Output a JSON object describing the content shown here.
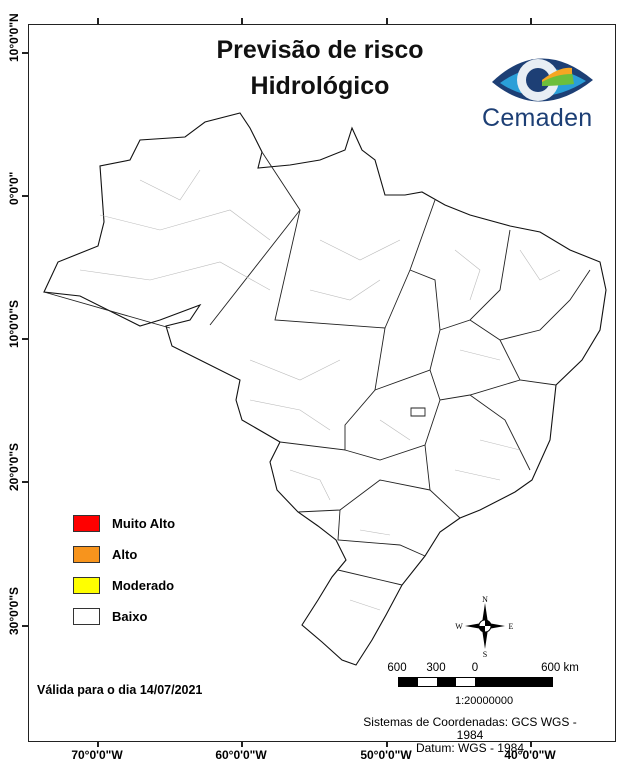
{
  "map": {
    "title_line1": "Previsão de risco",
    "title_line2": "Hidrológico",
    "logo": {
      "text": "Cemaden",
      "colors": [
        "#1d3f75",
        "#2a9fd8",
        "#6cbf3c",
        "#f5a623"
      ]
    },
    "latitude_labels": [
      "10°0'0\"N",
      "0°0'0\"",
      "10°0'0\"S",
      "20°0'0\"S",
      "30°0'0\"S"
    ],
    "longitude_labels": [
      "70°0'0\"W",
      "60°0'0\"W",
      "50°0'0\"W",
      "40°0'0\"W"
    ],
    "legend": [
      {
        "label": "Muito Alto",
        "color": "#ff0000"
      },
      {
        "label": "Alto",
        "color": "#f7941d"
      },
      {
        "label": "Moderado",
        "color": "#ffff00"
      },
      {
        "label": "Baixo",
        "color": "#ffffff"
      }
    ],
    "region_risk_level": "Baixo",
    "valid_text": "Válida para o dia 14/07/2021",
    "compass": {
      "n": "N",
      "s": "S",
      "e": "E",
      "w": "W"
    },
    "scale": {
      "labels": [
        "600",
        "300",
        "0",
        "600 km"
      ],
      "ratio": "1:20000000"
    },
    "crs_line1": "Sistemas de Coordenadas: GCS WGS - 1984",
    "crs_line2": "Datum: WGS - 1984"
  }
}
